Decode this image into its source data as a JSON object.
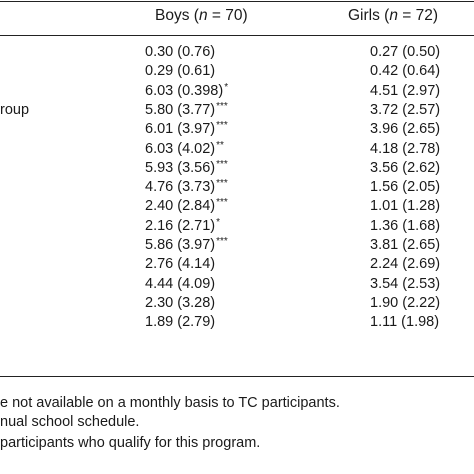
{
  "header": {
    "boys_label": "Boys (",
    "boys_n_symbol": "n",
    "boys_n_value": " = 70)",
    "girls_label": "Girls (",
    "girls_n_symbol": "n",
    "girls_n_value": " = 72)"
  },
  "rows": [
    {
      "label": "",
      "boys": "0.30 (0.76)",
      "boys_sig": "",
      "girls": "0.27 (0.50)"
    },
    {
      "label": "",
      "boys": "0.29 (0.61)",
      "boys_sig": "",
      "girls": "0.42 (0.64)"
    },
    {
      "label": "",
      "boys": "6.03 (0.398)",
      "boys_sig": "*",
      "girls": "4.51 (2.97)"
    },
    {
      "label": "roup",
      "boys": "5.80 (3.77)",
      "boys_sig": "***",
      "girls": "3.72 (2.57)"
    },
    {
      "label": "",
      "boys": "6.01 (3.97)",
      "boys_sig": "***",
      "girls": "3.96 (2.65)"
    },
    {
      "label": "",
      "boys": "6.03 (4.02)",
      "boys_sig": "**",
      "girls": "4.18 (2.78)"
    },
    {
      "label": "",
      "boys": "5.93 (3.56)",
      "boys_sig": "***",
      "girls": "3.56 (2.62)"
    },
    {
      "label": "",
      "boys": "4.76 (3.73)",
      "boys_sig": "***",
      "girls": "1.56 (2.05)"
    },
    {
      "label": "",
      "boys": "2.40 (2.84)",
      "boys_sig": "***",
      "girls": "1.01 (1.28)"
    },
    {
      "label": "",
      "boys": "2.16 (2.71)",
      "boys_sig": "*",
      "girls": "1.36 (1.68)"
    },
    {
      "label": "",
      "boys": "5.86 (3.97)",
      "boys_sig": "***",
      "girls": "3.81 (2.65)"
    },
    {
      "label": "",
      "boys": "2.76 (4.14)",
      "boys_sig": "",
      "girls": "2.24 (2.69)"
    },
    {
      "label": "",
      "boys": "4.44 (4.09)",
      "boys_sig": "",
      "girls": "3.54 (2.53)"
    },
    {
      "label": "",
      "boys": "2.30 (3.28)",
      "boys_sig": "",
      "girls": "1.90 (2.22)"
    },
    {
      "label": "",
      "boys": "1.89 (2.79)",
      "boys_sig": "",
      "girls": "1.11 (1.98)"
    }
  ],
  "notes": [
    "e not available on a monthly basis to TC participants.",
    "nual school schedule.",
    " participants who qualify for this program."
  ]
}
